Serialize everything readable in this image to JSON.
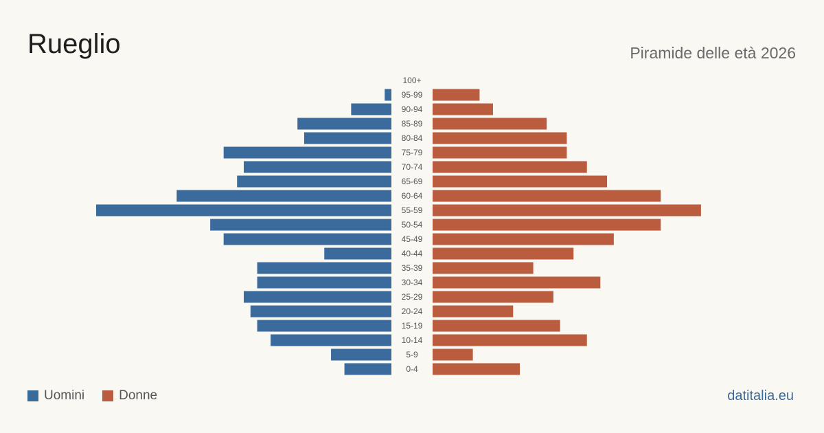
{
  "header": {
    "title": "Rueglio",
    "subtitle": "Piramide delle età 2026"
  },
  "legend": {
    "men_label": "Uomini",
    "women_label": "Donne"
  },
  "brand": "datitalia.eu",
  "colors": {
    "men": "#3b6a9c",
    "women": "#b95d3e",
    "background": "#faf8f3"
  },
  "chart_data": {
    "type": "bar",
    "orientation": "horizontal-pyramid",
    "categories": [
      "0-4",
      "5-9",
      "10-14",
      "15-19",
      "20-24",
      "25-29",
      "30-34",
      "35-39",
      "40-44",
      "45-49",
      "50-54",
      "55-59",
      "60-64",
      "65-69",
      "70-74",
      "75-79",
      "80-84",
      "85-89",
      "90-94",
      "95-99",
      "100+"
    ],
    "series": [
      {
        "name": "Uomini",
        "values": [
          7,
          9,
          18,
          20,
          21,
          22,
          20,
          20,
          10,
          25,
          27,
          44,
          32,
          23,
          22,
          25,
          13,
          14,
          6,
          1,
          0
        ]
      },
      {
        "name": "Donne",
        "values": [
          13,
          6,
          23,
          19,
          12,
          18,
          25,
          15,
          21,
          27,
          34,
          40,
          34,
          26,
          23,
          20,
          20,
          17,
          9,
          7,
          0
        ]
      }
    ],
    "xlim": [
      0,
      44
    ],
    "grid": false,
    "legend_position": "bottom-left"
  }
}
